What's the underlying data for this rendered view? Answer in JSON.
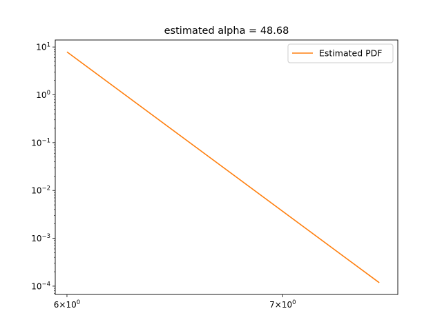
{
  "chart_data": {
    "type": "line",
    "title": "estimated alpha = 48.68",
    "xlabel": "",
    "ylabel": "",
    "x_scale": "log",
    "y_scale": "log",
    "xlim": [
      5.95,
      7.6
    ],
    "ylim": [
      6.7e-05,
      14.0
    ],
    "grid": false,
    "legend_position": "upper right",
    "x_ticks": [
      {
        "value": 6,
        "mantissa": "6",
        "base": "10",
        "exp": "0"
      },
      {
        "value": 7,
        "mantissa": "7",
        "base": "10",
        "exp": "0"
      }
    ],
    "y_ticks": [
      {
        "value": 10,
        "base": "10",
        "exp": "1"
      },
      {
        "value": 1,
        "base": "10",
        "exp": "0"
      },
      {
        "value": 0.1,
        "base": "10",
        "exp": "−1"
      },
      {
        "value": 0.01,
        "base": "10",
        "exp": "−2"
      },
      {
        "value": 0.001,
        "base": "10",
        "exp": "−3"
      },
      {
        "value": 0.0001,
        "base": "10",
        "exp": "−4"
      }
    ],
    "series": [
      {
        "name": "Estimated PDF",
        "color": "#ff7f0e",
        "x": [
          6.0,
          7.5
        ],
        "y": [
          7.9,
          0.000118
        ]
      }
    ]
  }
}
